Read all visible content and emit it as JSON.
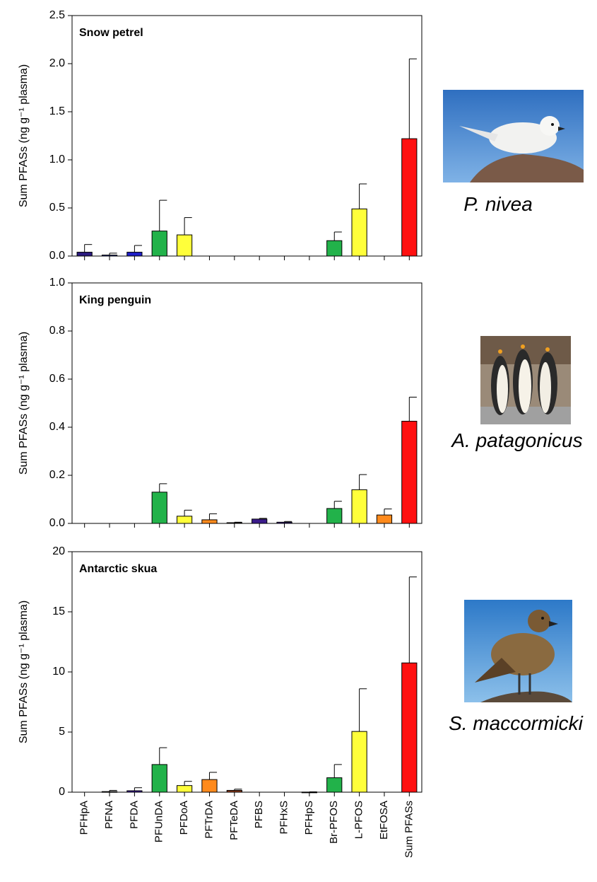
{
  "chart_data": [
    {
      "type": "bar",
      "title": "Snow petrel",
      "y_label": "Sum PFASs (ng g⁻¹ plasma)",
      "species": "P. nivea",
      "values": [
        0.04,
        0.01,
        0.04,
        0.26,
        0.22,
        null,
        null,
        null,
        null,
        null,
        0.16,
        0.49,
        null,
        1.22
      ],
      "errors": [
        0.08,
        0.02,
        0.07,
        0.32,
        0.18,
        null,
        null,
        null,
        null,
        null,
        0.09,
        0.26,
        null,
        0.83
      ],
      "colors": [
        "#2b1b80",
        "#1c2aa8",
        "#1f1fc8",
        "#22b24a",
        "#ffff3a",
        "#ff8a1c",
        "#7a2a1a",
        "#3b1b8a",
        "#3b1b8a",
        "#3b1b8a",
        "#22b24a",
        "#ffff3a",
        "#ff8a1c",
        "#ff1010"
      ],
      "ylim": [
        0,
        2.5
      ],
      "yticks": [
        {
          "value": 0,
          "label": "0.0"
        },
        0.5,
        {
          "value": 1,
          "label": "1.0"
        },
        1.5,
        {
          "value": 2,
          "label": "2.0"
        },
        2.5
      ]
    },
    {
      "type": "bar",
      "title": "King penguin",
      "y_label": "Sum PFASs (ng g⁻¹ plasma)",
      "species": "A. patagonicus",
      "values": [
        null,
        null,
        null,
        0.13,
        0.03,
        0.015,
        0.003,
        0.018,
        0.005,
        null,
        0.062,
        0.14,
        0.035,
        0.425
      ],
      "errors": [
        null,
        null,
        null,
        0.035,
        0.025,
        0.025,
        0.002,
        0.003,
        0.003,
        null,
        0.03,
        0.063,
        0.025,
        0.1
      ],
      "colors": [
        "#2b1b80",
        "#1c2aa8",
        "#1f1fc8",
        "#22b24a",
        "#ffff3a",
        "#ff8a1c",
        "#7a2a1a",
        "#3b1b8a",
        "#3b1b8a",
        "#3b1b8a",
        "#22b24a",
        "#ffff3a",
        "#ff8a1c",
        "#ff1010"
      ],
      "ylim": [
        0,
        1
      ],
      "yticks": [
        {
          "value": 0,
          "label": "0.0"
        },
        0.2,
        0.4,
        0.6,
        0.8,
        {
          "value": 1,
          "label": "1.0"
        }
      ]
    },
    {
      "type": "bar",
      "title": "Antarctic skua",
      "y_label": "Sum PFASs (ng g⁻¹ plasma)",
      "species": "S. maccormicki",
      "categories": [
        "PFHpA",
        "PFNA",
        "PFDA",
        "PFUnDA",
        "PFDoA",
        "PFTrDA",
        "PFTeDA",
        "PFBS",
        "PFHxS",
        "PFHpS",
        "Br-PFOS",
        "L-PFOS",
        "EtFOSA",
        "Sum PFASs"
      ],
      "values": [
        null,
        0.05,
        0.12,
        2.3,
        0.55,
        1.05,
        0.15,
        null,
        null,
        0.01,
        1.2,
        5.05,
        null,
        10.75
      ],
      "errors": [
        null,
        0.1,
        0.25,
        1.4,
        0.35,
        0.6,
        0.1,
        null,
        null,
        0.02,
        1.1,
        3.55,
        null,
        7.15
      ],
      "colors": [
        "#2b1b80",
        "#333333",
        "#3b1b9a",
        "#22b24a",
        "#ffff3a",
        "#ff8a1c",
        "#8b3a1a",
        "#3b1b8a",
        "#3b1b8a",
        "#3b1b8a",
        "#22b24a",
        "#ffff3a",
        "#ff8a1c",
        "#ff1010"
      ],
      "ylim": [
        0,
        20
      ],
      "yticks": [
        0,
        5,
        10,
        15,
        20
      ]
    }
  ]
}
